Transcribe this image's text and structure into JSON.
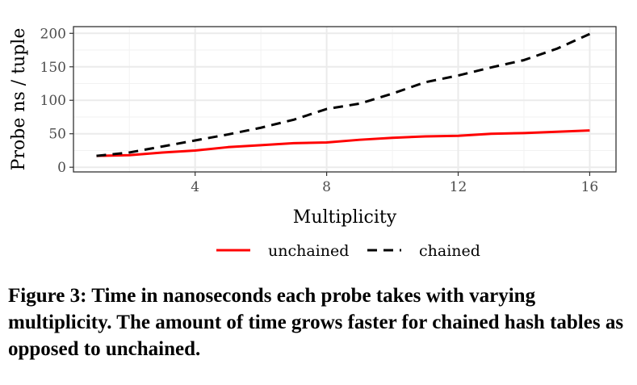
{
  "chart_data": {
    "type": "line",
    "xlabel": "Multiplicity",
    "ylabel": "Probe ns / tuple",
    "xlim": [
      0.3,
      16.8
    ],
    "ylim": [
      -7,
      210
    ],
    "x_ticks": [
      4,
      8,
      12,
      16
    ],
    "x_minor_ticks": [
      2,
      6,
      10,
      14
    ],
    "y_ticks": [
      0,
      50,
      100,
      150,
      200
    ],
    "y_minor_ticks": [
      25,
      75,
      125,
      175
    ],
    "grid": true,
    "legend_position": "bottom",
    "x": [
      1,
      2,
      3,
      4,
      5,
      6,
      7,
      8,
      9,
      10,
      11,
      12,
      13,
      14,
      15,
      16
    ],
    "series": [
      {
        "name": "unchained",
        "color": "#ff0000",
        "dash": "solid",
        "values": [
          17,
          18,
          22,
          25,
          30,
          33,
          36,
          37,
          41,
          44,
          46,
          47,
          50,
          51,
          53,
          55
        ]
      },
      {
        "name": "chained",
        "color": "#000000",
        "dash": "dashed",
        "values": [
          17,
          22,
          31,
          40,
          49,
          59,
          71,
          87,
          95,
          110,
          127,
          137,
          149,
          160,
          177,
          199
        ]
      }
    ]
  },
  "caption": "Figure 3: Time in nanoseconds each probe takes with varying multiplicity. The amount of time grows faster for chained hash tables as opposed to unchained."
}
